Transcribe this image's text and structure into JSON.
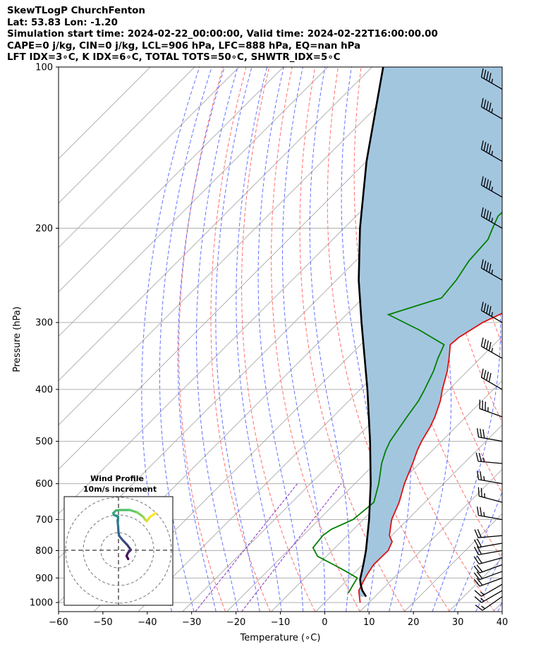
{
  "header": {
    "line1": "SkewTLogP ChurchFenton",
    "line2": "Lat: 53.83   Lon: -1.20",
    "line3": "Simulation start time: 2024-02-22_00:00:00, Valid time: 2024-02-22T16:00:00.00",
    "line4": "CAPE=0 j/kg, CIN=0 j/kg, LCL=906 hPa, LFC=888 hPa, EQ=nan hPa",
    "line5": "LFT IDX=3∘C, K IDX=6∘C, TOTAL TOTS=50∘C, SHWTR_IDX=5∘C"
  },
  "chart_data": {
    "type": "skewt",
    "title": "SkewTLogP ChurchFenton",
    "xlabel": "Temperature (∘C)",
    "ylabel": "Pressure (hPa)",
    "xlim": [
      -60,
      40
    ],
    "ylim": [
      1040,
      100
    ],
    "xticks": [
      -60,
      -50,
      -40,
      -30,
      -20,
      -10,
      0,
      10,
      20,
      30,
      40
    ],
    "xtick_labels": [
      "−60",
      "−50",
      "−40",
      "−30",
      "−20",
      "−10",
      "0",
      "10",
      "20",
      "30",
      "40"
    ],
    "yticks": [
      1000,
      900,
      800,
      700,
      600,
      500,
      400,
      300,
      200,
      100
    ],
    "ytick_labels": [
      "1000",
      "900",
      "800",
      "700",
      "600",
      "500",
      "400",
      "300",
      "200",
      "100"
    ],
    "grid": true,
    "colors": {
      "temperature": "#dd1111",
      "dewpoint": "#008000",
      "parcel": "#000000",
      "shading": "#a3c6df",
      "dry_adiabat": "#ff5555",
      "moist_adiabat": "#3c4cff",
      "mixing_ratio": "#8833bb",
      "isotherm": "#aaaaaa",
      "wind_barb": "#000000"
    },
    "temperature_profile": [
      [
        1000,
        8.0
      ],
      [
        975,
        6.5
      ],
      [
        950,
        5.0
      ],
      [
        925,
        4.3
      ],
      [
        900,
        3.6
      ],
      [
        875,
        3.0
      ],
      [
        850,
        2.5
      ],
      [
        800,
        2.6
      ],
      [
        770,
        1.5
      ],
      [
        750,
        -0.5
      ],
      [
        700,
        -3.6
      ],
      [
        650,
        -5.8
      ],
      [
        600,
        -8.8
      ],
      [
        550,
        -11.5
      ],
      [
        520,
        -13.4
      ],
      [
        500,
        -14.5
      ],
      [
        470,
        -15.8
      ],
      [
        450,
        -17.0
      ],
      [
        420,
        -19.4
      ],
      [
        400,
        -21.5
      ],
      [
        370,
        -24.5
      ],
      [
        350,
        -27.0
      ],
      [
        330,
        -29.8
      ],
      [
        320,
        -29.5
      ],
      [
        300,
        -27.5
      ],
      [
        285,
        -24.5
      ],
      [
        270,
        -22.5
      ],
      [
        250,
        -21.3
      ],
      [
        230,
        -20.0
      ],
      [
        210,
        -20.0
      ],
      [
        200,
        -19.2
      ],
      [
        180,
        -17.8
      ],
      [
        160,
        -16.8
      ],
      [
        150,
        -15.8
      ],
      [
        140,
        -14.5
      ],
      [
        130,
        -13.8
      ],
      [
        120,
        -13.2
      ],
      [
        110,
        -12.4
      ],
      [
        100,
        -11.5
      ]
    ],
    "dewpoint_profile": [
      [
        960,
        3.2
      ],
      [
        930,
        2.5
      ],
      [
        900,
        1.8
      ],
      [
        870,
        -3.0
      ],
      [
        850,
        -6.5
      ],
      [
        820,
        -12.0
      ],
      [
        790,
        -15.0
      ],
      [
        750,
        -15.5
      ],
      [
        730,
        -15.0
      ],
      [
        700,
        -12.3
      ],
      [
        650,
        -11.5
      ],
      [
        600,
        -14.6
      ],
      [
        550,
        -18.5
      ],
      [
        520,
        -20.5
      ],
      [
        500,
        -21.6
      ],
      [
        450,
        -23.3
      ],
      [
        420,
        -24.3
      ],
      [
        400,
        -25.5
      ],
      [
        370,
        -27.6
      ],
      [
        350,
        -29.5
      ],
      [
        330,
        -31.2
      ],
      [
        310,
        -40.0
      ],
      [
        290,
        -50.5
      ],
      [
        270,
        -42.3
      ],
      [
        250,
        -43.0
      ],
      [
        230,
        -44.5
      ],
      [
        210,
        -45.0
      ],
      [
        200,
        -46.5
      ],
      [
        190,
        -48.0
      ],
      [
        180,
        -47.8
      ],
      [
        160,
        -47.5
      ],
      [
        150,
        -47.4
      ],
      [
        130,
        -47.3
      ],
      [
        110,
        -47.5
      ],
      [
        100,
        -48.5
      ]
    ],
    "parcel_profile": [
      [
        975,
        8.0
      ],
      [
        950,
        5.8
      ],
      [
        925,
        4.0
      ],
      [
        906,
        2.8
      ],
      [
        850,
        0.2
      ],
      [
        800,
        -2.4
      ],
      [
        700,
        -8.7
      ],
      [
        600,
        -16.4
      ],
      [
        500,
        -26.1
      ],
      [
        400,
        -38.4
      ],
      [
        300,
        -54.8
      ],
      [
        250,
        -65.0
      ],
      [
        200,
        -76.4
      ],
      [
        150,
        -90.0
      ],
      [
        100,
        -107.5
      ]
    ],
    "wind_barbs": [
      {
        "p": 975,
        "speed_kt": 15,
        "dir_deg": 235
      },
      {
        "p": 950,
        "speed_kt": 15,
        "dir_deg": 240
      },
      {
        "p": 925,
        "speed_kt": 15,
        "dir_deg": 240
      },
      {
        "p": 900,
        "speed_kt": 20,
        "dir_deg": 250
      },
      {
        "p": 875,
        "speed_kt": 20,
        "dir_deg": 250
      },
      {
        "p": 850,
        "speed_kt": 20,
        "dir_deg": 250
      },
      {
        "p": 825,
        "speed_kt": 20,
        "dir_deg": 255
      },
      {
        "p": 800,
        "speed_kt": 20,
        "dir_deg": 260
      },
      {
        "p": 775,
        "speed_kt": 20,
        "dir_deg": 260
      },
      {
        "p": 750,
        "speed_kt": 20,
        "dir_deg": 265
      },
      {
        "p": 700,
        "speed_kt": 25,
        "dir_deg": 280
      },
      {
        "p": 650,
        "speed_kt": 25,
        "dir_deg": 285
      },
      {
        "p": 600,
        "speed_kt": 25,
        "dir_deg": 280
      },
      {
        "p": 550,
        "speed_kt": 25,
        "dir_deg": 275
      },
      {
        "p": 500,
        "speed_kt": 30,
        "dir_deg": 280
      },
      {
        "p": 450,
        "speed_kt": 35,
        "dir_deg": 290
      },
      {
        "p": 400,
        "speed_kt": 40,
        "dir_deg": 300
      },
      {
        "p": 350,
        "speed_kt": 45,
        "dir_deg": 300
      },
      {
        "p": 300,
        "speed_kt": 45,
        "dir_deg": 300
      },
      {
        "p": 250,
        "speed_kt": 45,
        "dir_deg": 300
      },
      {
        "p": 200,
        "speed_kt": 45,
        "dir_deg": 300
      },
      {
        "p": 175,
        "speed_kt": 45,
        "dir_deg": 300
      },
      {
        "p": 150,
        "speed_kt": 45,
        "dir_deg": 300
      },
      {
        "p": 125,
        "speed_kt": 45,
        "dir_deg": 300
      },
      {
        "p": 110,
        "speed_kt": 45,
        "dir_deg": 300
      }
    ],
    "hodograph": {
      "title": "Wind Profile",
      "subtitle": "10m/s increment",
      "rings_ms": [
        10,
        20,
        30
      ],
      "points_uv": [
        [
          5.5,
          -5.0
        ],
        [
          4.6,
          -3.2
        ],
        [
          5.4,
          -1.4
        ],
        [
          7.0,
          0.2
        ],
        [
          5.0,
          3.0
        ],
        [
          2.5,
          5.6
        ],
        [
          0.5,
          8.0
        ],
        [
          0.0,
          10.0
        ],
        [
          -0.2,
          13.5
        ],
        [
          -0.5,
          16.5
        ],
        [
          -0.2,
          19.0
        ],
        [
          -2.5,
          20.0
        ],
        [
          -3.0,
          21.0
        ],
        [
          -1.5,
          22.5
        ],
        [
          0.5,
          22.8
        ],
        [
          6.5,
          22.8
        ],
        [
          10.5,
          21.5
        ],
        [
          14.0,
          19.0
        ],
        [
          15.0,
          17.5
        ],
        [
          16.0,
          16.5
        ],
        [
          18.0,
          19.0
        ],
        [
          21.0,
          21.0
        ]
      ]
    }
  }
}
